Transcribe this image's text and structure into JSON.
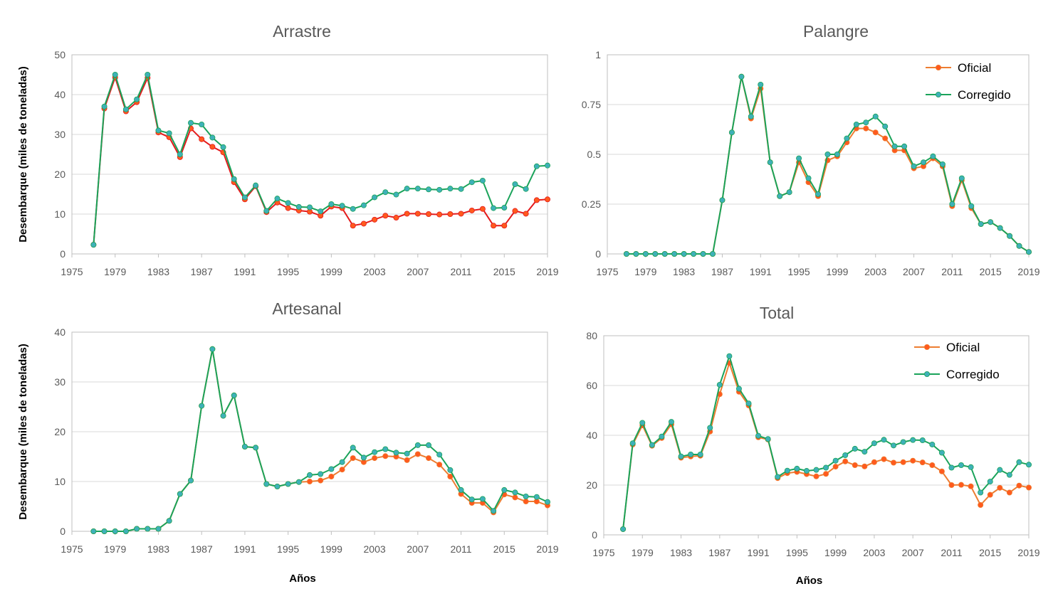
{
  "colors": {
    "oficial_line_1": "#e41a1c",
    "oficial_line": "#ed7d31",
    "oficial_marker": "#ff5a1e",
    "corregido_line": "#1aa35a",
    "corregido_marker": "#3fb1b8"
  },
  "chart_data": [
    {
      "type": "line",
      "title": "Arrastre",
      "ylabel": "Desembarque (miles de toneladas)",
      "xlabel": "",
      "xlim": [
        1975,
        2019
      ],
      "ylim": [
        0,
        50
      ],
      "xticks": [
        "1975",
        "1979",
        "1983",
        "1987",
        "1991",
        "1995",
        "1999",
        "2003",
        "2007",
        "2011",
        "2015",
        "2019"
      ],
      "yticks": [
        "0",
        "10",
        "20",
        "30",
        "40",
        "50"
      ],
      "legend": "none",
      "grid": true,
      "x": [
        1977,
        1978,
        1979,
        1980,
        1981,
        1982,
        1983,
        1984,
        1985,
        1986,
        1987,
        1988,
        1989,
        1990,
        1991,
        1992,
        1993,
        1994,
        1995,
        1996,
        1997,
        1998,
        1999,
        2000,
        2001,
        2002,
        2003,
        2004,
        2005,
        2006,
        2007,
        2008,
        2009,
        2010,
        2011,
        2012,
        2013,
        2014,
        2015,
        2016,
        2017,
        2018,
        2019
      ],
      "series": [
        {
          "name": "Oficial",
          "values": [
            2.3,
            36.5,
            44.3,
            35.8,
            38.1,
            44.2,
            30.5,
            29.3,
            24.3,
            31.5,
            28.8,
            26.9,
            25.5,
            18.0,
            13.7,
            17.0,
            10.5,
            12.9,
            11.5,
            10.9,
            10.6,
            9.6,
            11.9,
            11.5,
            7.1,
            7.6,
            8.6,
            9.6,
            9.1,
            10.1,
            10.1,
            10.0,
            9.9,
            10.0,
            10.1,
            10.9,
            11.3,
            7.1,
            7.1,
            10.8,
            10.1,
            13.5,
            13.7
          ]
        },
        {
          "name": "Corregido",
          "values": [
            2.3,
            37.0,
            45.0,
            36.3,
            38.8,
            45.0,
            31.0,
            30.3,
            25.0,
            32.9,
            32.5,
            29.2,
            26.8,
            18.8,
            14.2,
            17.2,
            10.8,
            13.9,
            12.8,
            11.8,
            11.7,
            10.7,
            12.5,
            12.1,
            11.3,
            12.2,
            14.2,
            15.5,
            14.9,
            16.4,
            16.4,
            16.2,
            16.1,
            16.4,
            16.3,
            18.0,
            18.4,
            11.5,
            11.6,
            17.5,
            16.3,
            22.0,
            22.2
          ]
        }
      ]
    },
    {
      "type": "line",
      "title": "Palangre",
      "ylabel": "",
      "xlabel": "",
      "xlim": [
        1975,
        2019
      ],
      "ylim": [
        0,
        1
      ],
      "xticks": [
        "1975",
        "1979",
        "1983",
        "1987",
        "1991",
        "1995",
        "1999",
        "2003",
        "2007",
        "2011",
        "2015",
        "2019"
      ],
      "yticks": [
        "0",
        "0.25",
        "0.5",
        "0.75",
        "1"
      ],
      "legend": "top-right",
      "legend_entries": [
        "Oficial",
        "Corregido"
      ],
      "grid": true,
      "x": [
        1977,
        1978,
        1979,
        1980,
        1981,
        1982,
        1983,
        1984,
        1985,
        1986,
        1987,
        1988,
        1989,
        1990,
        1991,
        1992,
        1993,
        1994,
        1995,
        1996,
        1997,
        1998,
        1999,
        2000,
        2001,
        2002,
        2003,
        2004,
        2005,
        2006,
        2007,
        2008,
        2009,
        2010,
        2011,
        2012,
        2013,
        2014,
        2015,
        2016,
        2017,
        2018,
        2019
      ],
      "series": [
        {
          "name": "Oficial",
          "values": [
            0,
            0,
            0,
            0,
            0,
            0,
            0,
            0,
            0,
            0,
            0.27,
            0.61,
            0.89,
            0.68,
            0.83,
            0.46,
            0.29,
            0.31,
            0.46,
            0.36,
            0.29,
            0.47,
            0.49,
            0.56,
            0.63,
            0.63,
            0.61,
            0.58,
            0.52,
            0.52,
            0.43,
            0.44,
            0.48,
            0.44,
            0.24,
            0.37,
            0.23,
            0.15,
            0.16,
            0.13,
            0.09,
            0.04,
            0.01
          ]
        },
        {
          "name": "Corregido",
          "values": [
            0,
            0,
            0,
            0,
            0,
            0,
            0,
            0,
            0,
            0,
            0.27,
            0.61,
            0.89,
            0.69,
            0.85,
            0.46,
            0.29,
            0.31,
            0.48,
            0.38,
            0.3,
            0.5,
            0.5,
            0.58,
            0.65,
            0.66,
            0.69,
            0.64,
            0.54,
            0.54,
            0.44,
            0.46,
            0.49,
            0.45,
            0.25,
            0.38,
            0.24,
            0.15,
            0.16,
            0.13,
            0.09,
            0.04,
            0.01
          ]
        }
      ]
    },
    {
      "type": "line",
      "title": "Artesanal",
      "ylabel": "Desembarque (miles de toneladas)",
      "xlabel": "Años",
      "xlim": [
        1975,
        2019
      ],
      "ylim": [
        0,
        40
      ],
      "xticks": [
        "1975",
        "1979",
        "1983",
        "1987",
        "1991",
        "1995",
        "1999",
        "2003",
        "2007",
        "2011",
        "2015",
        "2019"
      ],
      "yticks": [
        "0",
        "10",
        "20",
        "30",
        "40"
      ],
      "legend": "none",
      "grid": true,
      "x": [
        1977,
        1978,
        1979,
        1980,
        1981,
        1982,
        1983,
        1984,
        1985,
        1986,
        1987,
        1988,
        1989,
        1990,
        1991,
        1992,
        1993,
        1994,
        1995,
        1996,
        1997,
        1998,
        1999,
        2000,
        2001,
        2002,
        2003,
        2004,
        2005,
        2006,
        2007,
        2008,
        2009,
        2010,
        2011,
        2012,
        2013,
        2014,
        2015,
        2016,
        2017,
        2018,
        2019
      ],
      "series": [
        {
          "name": "Oficial",
          "values": [
            0,
            0,
            0,
            0,
            0.5,
            0.5,
            0.5,
            2.1,
            7.5,
            10.2,
            25.2,
            36.6,
            23.2,
            27.3,
            17.0,
            16.8,
            9.5,
            9.0,
            9.5,
            9.9,
            10.0,
            10.2,
            11.0,
            12.4,
            14.7,
            13.9,
            14.7,
            15.1,
            15.0,
            14.3,
            15.5,
            14.7,
            13.4,
            11.0,
            7.5,
            5.7,
            5.7,
            3.8,
            7.4,
            6.8,
            6.0,
            6.0,
            5.2
          ]
        },
        {
          "name": "Corregido",
          "values": [
            0,
            0,
            0,
            0,
            0.5,
            0.5,
            0.5,
            2.1,
            7.5,
            10.2,
            25.2,
            36.6,
            23.2,
            27.3,
            17.0,
            16.8,
            9.5,
            9.0,
            9.5,
            9.9,
            11.3,
            11.5,
            12.5,
            13.9,
            16.8,
            14.8,
            15.9,
            16.5,
            15.8,
            15.6,
            17.3,
            17.3,
            15.4,
            12.3,
            8.3,
            6.4,
            6.5,
            4.1,
            8.3,
            7.8,
            7.0,
            6.9,
            5.9
          ]
        }
      ]
    },
    {
      "type": "line",
      "title": "Total",
      "ylabel": "",
      "xlabel": "Años",
      "xlim": [
        1975,
        2019
      ],
      "ylim": [
        0,
        80
      ],
      "xticks": [
        "1975",
        "1979",
        "1983",
        "1987",
        "1991",
        "1995",
        "1999",
        "2003",
        "2007",
        "2011",
        "2015",
        "2019"
      ],
      "yticks": [
        "0",
        "20",
        "40",
        "60",
        "80"
      ],
      "legend": "top-right",
      "legend_entries": [
        "Oficial",
        "Corregido"
      ],
      "grid": true,
      "x": [
        1977,
        1978,
        1979,
        1980,
        1981,
        1982,
        1983,
        1984,
        1985,
        1986,
        1987,
        1988,
        1989,
        1990,
        1991,
        1992,
        1993,
        1994,
        1995,
        1996,
        1997,
        1998,
        1999,
        2000,
        2001,
        2002,
        2003,
        2004,
        2005,
        2006,
        2007,
        2008,
        2009,
        2010,
        2011,
        2012,
        2013,
        2014,
        2015,
        2016,
        2017,
        2018,
        2019
      ],
      "series": [
        {
          "name": "Oficial",
          "values": [
            2.3,
            36.3,
            44.0,
            35.8,
            38.9,
            44.4,
            31.0,
            31.5,
            31.8,
            41.5,
            56.5,
            69.0,
            57.5,
            52.0,
            39.2,
            38.3,
            22.8,
            24.8,
            25.3,
            24.4,
            23.5,
            24.5,
            27.4,
            29.5,
            28.0,
            27.5,
            29.2,
            30.4,
            29.0,
            29.2,
            29.8,
            29.1,
            28.0,
            25.5,
            20.0,
            20.1,
            19.5,
            12.0,
            16.1,
            18.9,
            17.0,
            19.8,
            19.0
          ]
        },
        {
          "name": "Corregido",
          "values": [
            2.3,
            36.8,
            45.0,
            36.1,
            39.5,
            45.4,
            31.5,
            32.3,
            32.3,
            43.0,
            60.3,
            71.8,
            58.7,
            52.8,
            39.8,
            38.5,
            23.3,
            25.8,
            26.6,
            25.7,
            26.1,
            27.0,
            29.8,
            32.0,
            34.6,
            33.4,
            36.8,
            38.2,
            35.9,
            37.3,
            38.1,
            38.0,
            36.3,
            33.0,
            27.0,
            28.0,
            27.2,
            17.0,
            21.4,
            26.1,
            24.1,
            29.2,
            28.2
          ]
        }
      ]
    }
  ]
}
